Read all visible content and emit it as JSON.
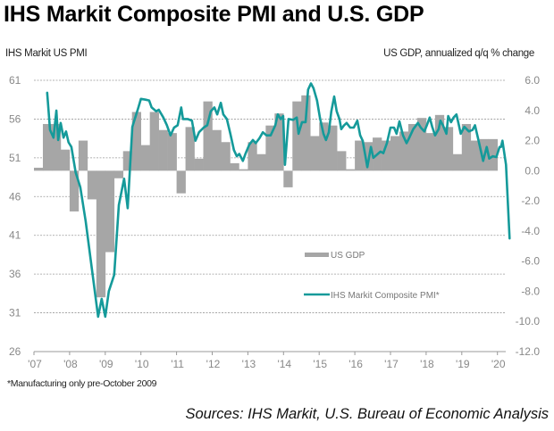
{
  "header": {
    "title": "IHS Markit Composite PMI and U.S. GDP",
    "left_axis_title": "IHS Markit US PMI",
    "right_axis_title": "US GDP, annualized q/q % change"
  },
  "footer": {
    "footnote": "*Manufacturing only pre-October 2009",
    "sources": "Sources: IHS Markit, U.S. Bureau of Economic Analysis"
  },
  "colors": {
    "line": "#159a9a",
    "bar": "#a6a6a6",
    "grid": "#9a9a9a",
    "axis": "#999999",
    "tick_text": "#888888"
  },
  "chart_data": {
    "type": "bar+line",
    "title": "IHS Markit Composite PMI and U.S. GDP",
    "xlabel": "",
    "ylabel_left": "IHS Markit US PMI",
    "ylabel_right": "US GDP, annualized q/q % change",
    "x_range": [
      2007,
      2020.25
    ],
    "ylim_left": [
      26,
      61
    ],
    "ylim_right": [
      -12,
      6
    ],
    "y_ticks_left": [
      "61",
      "56",
      "51",
      "46",
      "41",
      "36",
      "31",
      "26"
    ],
    "y_ticks_right": [
      "6.0",
      "4.0",
      "2.0",
      "0.0",
      "-2.0",
      "-4.0",
      "-6.0",
      "-8.0",
      "-10.0",
      "-12.0"
    ],
    "x_ticks": [
      "'07",
      "'08",
      "'09",
      "'10",
      "'11",
      "'12",
      "'13",
      "'14",
      "'15",
      "'16",
      "'17",
      "'18",
      "'19",
      "'20"
    ],
    "grid": true,
    "legend_placement": "center-right",
    "series": [
      {
        "name": "US GDP",
        "type": "bar",
        "axis": "right",
        "unit": "quarterly",
        "start": "2007Q1",
        "values": [
          0.2,
          3.1,
          3.1,
          1.4,
          -2.7,
          2.0,
          -1.9,
          -8.4,
          -5.4,
          -0.5,
          1.3,
          3.9,
          1.7,
          3.9,
          2.7,
          2.5,
          -1.5,
          2.9,
          0.8,
          4.6,
          2.7,
          1.9,
          0.5,
          0.1,
          1.9,
          1.1,
          3.0,
          3.8,
          -1.1,
          4.6,
          5.0,
          2.3,
          3.2,
          3.0,
          1.3,
          0.1,
          2.0,
          1.9,
          2.2,
          2.0,
          2.3,
          2.6,
          3.1,
          3.5,
          2.5,
          3.7,
          2.9,
          1.1,
          3.1,
          2.0,
          2.1,
          2.1
        ]
      },
      {
        "name": "IHS Markit Composite PMI*",
        "type": "line",
        "axis": "left",
        "points": [
          [
            2007.37,
            59.4
          ],
          [
            2007.45,
            54.6
          ],
          [
            2007.55,
            53.6
          ],
          [
            2007.63,
            57.1
          ],
          [
            2007.68,
            53.3
          ],
          [
            2007.75,
            55.5
          ],
          [
            2007.83,
            53.6
          ],
          [
            2007.9,
            54.4
          ],
          [
            2007.97,
            53.0
          ],
          [
            2008.05,
            52.4
          ],
          [
            2008.17,
            49.1
          ],
          [
            2008.3,
            47.2
          ],
          [
            2008.45,
            42.8
          ],
          [
            2008.8,
            30.5
          ],
          [
            2008.9,
            32.8
          ],
          [
            2009.0,
            30.5
          ],
          [
            2009.1,
            33.8
          ],
          [
            2009.25,
            35.9
          ],
          [
            2009.38,
            44.9
          ],
          [
            2009.53,
            48.3
          ],
          [
            2009.63,
            44.5
          ],
          [
            2009.76,
            55.0
          ],
          [
            2009.93,
            57.5
          ],
          [
            2010.0,
            58.6
          ],
          [
            2010.13,
            58.5
          ],
          [
            2010.23,
            58.4
          ],
          [
            2010.3,
            57.5
          ],
          [
            2010.43,
            57.0
          ],
          [
            2010.5,
            57.2
          ],
          [
            2010.63,
            56.2
          ],
          [
            2010.73,
            55.2
          ],
          [
            2010.83,
            53.9
          ],
          [
            2010.93,
            54.9
          ],
          [
            2011.03,
            55.2
          ],
          [
            2011.13,
            57.5
          ],
          [
            2011.18,
            56.0
          ],
          [
            2011.31,
            56.0
          ],
          [
            2011.43,
            55.8
          ],
          [
            2011.53,
            53.2
          ],
          [
            2011.63,
            54.3
          ],
          [
            2011.76,
            54.9
          ],
          [
            2011.86,
            55.2
          ],
          [
            2011.96,
            57.0
          ],
          [
            2012.06,
            57.5
          ],
          [
            2012.14,
            56.6
          ],
          [
            2012.24,
            58.1
          ],
          [
            2012.31,
            56.6
          ],
          [
            2012.41,
            56.0
          ],
          [
            2012.51,
            54.1
          ],
          [
            2012.61,
            52.0
          ],
          [
            2012.69,
            51.2
          ],
          [
            2012.76,
            51.5
          ],
          [
            2012.86,
            50.6
          ],
          [
            2012.94,
            51.6
          ],
          [
            2013.04,
            52.7
          ],
          [
            2013.14,
            53.3
          ],
          [
            2013.22,
            52.9
          ],
          [
            2013.32,
            53.5
          ],
          [
            2013.42,
            54.3
          ],
          [
            2013.52,
            53.9
          ],
          [
            2013.64,
            53.9
          ],
          [
            2013.77,
            55.2
          ],
          [
            2013.84,
            56.6
          ],
          [
            2013.92,
            56.0
          ],
          [
            2013.99,
            56.4
          ],
          [
            2014.04,
            50.1
          ],
          [
            2014.14,
            56.0
          ],
          [
            2014.27,
            55.9
          ],
          [
            2014.37,
            56.2
          ],
          [
            2014.42,
            54.1
          ],
          [
            2014.52,
            55.6
          ],
          [
            2014.62,
            55.6
          ],
          [
            2014.69,
            59.8
          ],
          [
            2014.77,
            60.6
          ],
          [
            2014.84,
            60.0
          ],
          [
            2014.94,
            58.4
          ],
          [
            2015.02,
            56.2
          ],
          [
            2015.12,
            54.1
          ],
          [
            2015.19,
            53.3
          ],
          [
            2015.27,
            54.3
          ],
          [
            2015.34,
            57.0
          ],
          [
            2015.42,
            58.9
          ],
          [
            2015.49,
            57.0
          ],
          [
            2015.57,
            56.0
          ],
          [
            2015.62,
            54.7
          ],
          [
            2015.7,
            55.2
          ],
          [
            2015.77,
            55.5
          ],
          [
            2015.87,
            54.9
          ],
          [
            2015.97,
            54.9
          ],
          [
            2016.07,
            55.8
          ],
          [
            2016.15,
            53.9
          ],
          [
            2016.22,
            53.2
          ],
          [
            2016.35,
            49.8
          ],
          [
            2016.45,
            52.4
          ],
          [
            2016.52,
            51.0
          ],
          [
            2016.62,
            51.4
          ],
          [
            2016.72,
            51.8
          ],
          [
            2016.8,
            51.6
          ],
          [
            2016.9,
            52.9
          ],
          [
            2017.0,
            54.9
          ],
          [
            2017.1,
            54.9
          ],
          [
            2017.17,
            54.1
          ],
          [
            2017.25,
            55.7
          ],
          [
            2017.35,
            53.9
          ],
          [
            2017.45,
            52.9
          ],
          [
            2017.52,
            53.5
          ],
          [
            2017.64,
            54.7
          ],
          [
            2017.77,
            55.5
          ],
          [
            2017.85,
            54.9
          ],
          [
            2017.95,
            54.4
          ],
          [
            2018.02,
            55.2
          ],
          [
            2018.1,
            56.2
          ],
          [
            2018.17,
            55.0
          ],
          [
            2018.25,
            53.9
          ],
          [
            2018.35,
            54.7
          ],
          [
            2018.4,
            55.8
          ],
          [
            2018.47,
            55.2
          ],
          [
            2018.57,
            54.1
          ],
          [
            2018.62,
            56.4
          ],
          [
            2018.7,
            55.6
          ],
          [
            2018.77,
            56.2
          ],
          [
            2018.85,
            56.6
          ],
          [
            2018.92,
            55.2
          ],
          [
            2018.97,
            54.1
          ],
          [
            2019.07,
            55.0
          ],
          [
            2019.2,
            54.4
          ],
          [
            2019.3,
            54.6
          ],
          [
            2019.37,
            55.2
          ],
          [
            2019.47,
            53.2
          ],
          [
            2019.6,
            50.6
          ],
          [
            2019.7,
            52.4
          ],
          [
            2019.77,
            50.9
          ],
          [
            2019.87,
            51.2
          ],
          [
            2019.97,
            51.1
          ],
          [
            2020.1,
            52.4
          ],
          [
            2020.06,
            52.4
          ],
          [
            2020.14,
            53.2
          ],
          [
            2020.24,
            50.1
          ],
          [
            2020.34,
            40.6
          ]
        ]
      }
    ],
    "legend": [
      {
        "label": "US GDP",
        "kind": "bar"
      },
      {
        "label": "IHS Markit Composite PMI*",
        "kind": "line"
      }
    ]
  }
}
